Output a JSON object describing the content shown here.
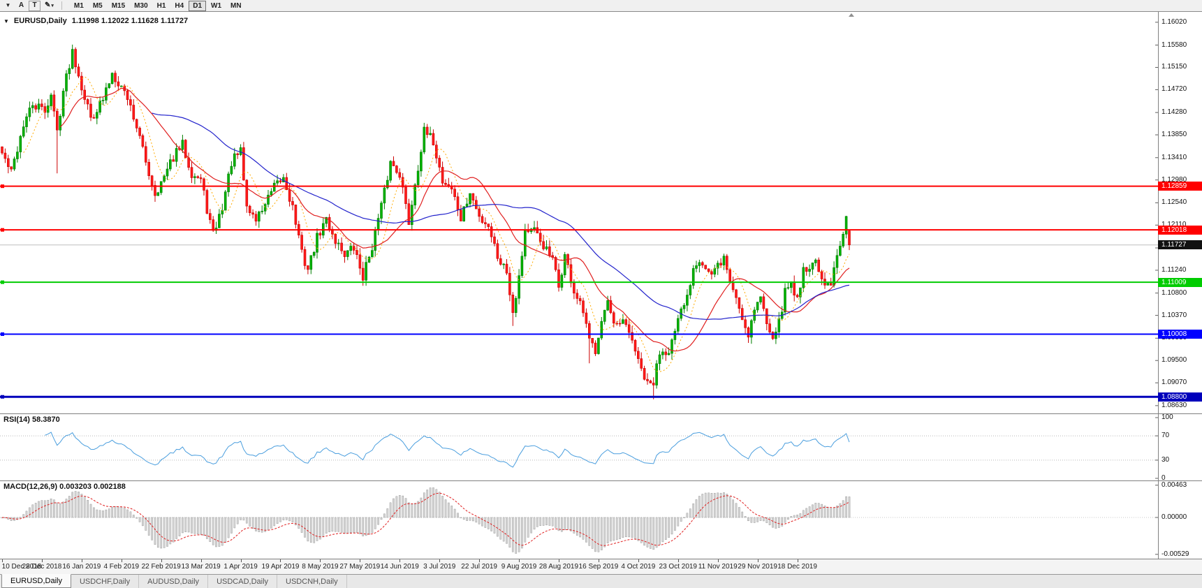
{
  "toolbar": {
    "menu_icon": "▼",
    "buttons": [
      {
        "label": "A"
      },
      {
        "label": "T"
      }
    ],
    "draw_icon": "✎",
    "draw_caret": "▾",
    "timeframes": [
      "M1",
      "M5",
      "M15",
      "M30",
      "H1",
      "H4",
      "D1",
      "W1",
      "MN"
    ],
    "active_timeframe": "D1"
  },
  "header": {
    "collapse_icon": "▼",
    "symbol": "EURUSD,Daily",
    "ohlc": "1.11998 1.12022 1.11628 1.11727",
    "open": "1.11998",
    "high": "1.12022",
    "low": "1.11628",
    "close": "1.11727"
  },
  "price_axis": {
    "ticks": [
      "1.16020",
      "1.15580",
      "1.15150",
      "1.14720",
      "1.14280",
      "1.13850",
      "1.13410",
      "1.12980",
      "1.12540",
      "1.12110",
      "1.11670",
      "1.11240",
      "1.10800",
      "1.10370",
      "1.09930",
      "1.09500",
      "1.09070",
      "1.08630"
    ]
  },
  "levels": [
    {
      "value": 1.12859,
      "label": "1.12859",
      "color": "#ff0000",
      "text_color": "#ffffff",
      "type": "resistance",
      "width": 2
    },
    {
      "value": 1.12018,
      "label": "1.12018",
      "color": "#ff0000",
      "text_color": "#ffffff",
      "type": "resistance",
      "width": 2
    },
    {
      "value": 1.11727,
      "label": "1.11727",
      "color": "#111111",
      "text_color": "#ffffff",
      "type": "current-price",
      "width": 1
    },
    {
      "value": 1.11009,
      "label": "1.11009",
      "color": "#00cc00",
      "text_color": "#ffffff",
      "type": "support",
      "width": 2
    },
    {
      "value": 1.10008,
      "label": "1.10008",
      "color": "#0000ff",
      "text_color": "#ffffff",
      "type": "support",
      "width": 2
    },
    {
      "value": 1.088,
      "label": "1.08800",
      "color": "#0000bb",
      "text_color": "#ffffff",
      "type": "support",
      "width": 3
    }
  ],
  "rsi": {
    "label": "RSI(14) 58.3870",
    "period": 14,
    "current": "58.3870",
    "ticks": [
      "100",
      "70",
      "30",
      "0"
    ],
    "level_lines": [
      70,
      30
    ],
    "color": "#4a9ede"
  },
  "macd": {
    "label": "MACD(12,26,9) 0.003203 0.002188",
    "params": "12,26,9",
    "main": "0.003203",
    "signal": "0.002188",
    "ticks": [
      "0.00463",
      "0.00000",
      "-0.00529"
    ]
  },
  "time_axis": {
    "labels": [
      "10 Dec 2018",
      "28 Dec 2018",
      "16 Jan 2019",
      "4 Feb 2019",
      "22 Feb 2019",
      "13 Mar 2019",
      "1 Apr 2019",
      "19 Apr 2019",
      "8 May 2019",
      "27 May 2019",
      "14 Jun 2019",
      "3 Jul 2019",
      "22 Jul 2019",
      "9 Aug 2019",
      "28 Aug 2019",
      "16 Sep 2019",
      "4 Oct 2019",
      "23 Oct 2019",
      "11 Nov 2019",
      "29 Nov 2019",
      "18 Dec 2019"
    ]
  },
  "tabs": [
    {
      "label": "EURUSD,Daily",
      "active": true
    },
    {
      "label": "USDCHF,Daily",
      "active": false
    },
    {
      "label": "AUDUSD,Daily",
      "active": false
    },
    {
      "label": "USDCAD,Daily",
      "active": false
    },
    {
      "label": "USDCNH,Daily",
      "active": false
    }
  ],
  "colors": {
    "up": "#007e00",
    "up_fill": "#00b200",
    "down": "#cc0000",
    "down_fill": "#ff1a1a",
    "ma_fast": "#ffaa00",
    "ma_mid": "#e02020",
    "ma_slow": "#2323cc",
    "rsi": "#4a9ede",
    "macd_hist_fill": "#d8d8d8",
    "macd_hist_stroke": "#9a9a9a",
    "macd_signal": "#e02020",
    "current_price_line": "#bdbdbd"
  },
  "chart_data": {
    "type": "candlestick",
    "symbol": "EURUSD",
    "timeframe": "Daily",
    "description": "EURUSD daily candles Dec 2018 - Jan 2020 with SMA(8) dotted, SMA(20) red, SMA(50) blue overlays, horizontal S/R levels at 1.12859, 1.12018, 1.11009, 1.10008, 1.08800, RSI(14)=58.3870 and MACD(12,26,9)=0.003203/0.002188 sub-panels",
    "price_domain": [
      1.0848,
      1.1622
    ],
    "candle_count": 278,
    "label_step": 13,
    "last_candle": {
      "open": 1.11998,
      "high": 1.12022,
      "low": 1.11628,
      "close": 1.11727
    },
    "moving_averages": [
      {
        "period": 8,
        "color": "#ffaa00",
        "style": "dashed"
      },
      {
        "period": 20,
        "color": "#e02020",
        "style": "solid"
      },
      {
        "period": 50,
        "color": "#2323cc",
        "style": "solid"
      }
    ],
    "wick_extensions": [
      [
        18,
        0.0072
      ],
      [
        167,
        0.0018
      ],
      [
        192,
        0.0046
      ],
      [
        213,
        0.0026
      ]
    ],
    "anchors": [
      [
        0,
        1.135
      ],
      [
        3,
        1.1312
      ],
      [
        7,
        1.1405
      ],
      [
        10,
        1.1442
      ],
      [
        14,
        1.1432
      ],
      [
        16,
        1.1462
      ],
      [
        18,
        1.1392
      ],
      [
        20,
        1.147
      ],
      [
        23,
        1.1548
      ],
      [
        26,
        1.148
      ],
      [
        29,
        1.1418
      ],
      [
        33,
        1.1452
      ],
      [
        36,
        1.1505
      ],
      [
        38,
        1.1488
      ],
      [
        41,
        1.1458
      ],
      [
        44,
        1.1402
      ],
      [
        47,
        1.1332
      ],
      [
        50,
        1.1272
      ],
      [
        53,
        1.1302
      ],
      [
        56,
        1.1342
      ],
      [
        59,
        1.1366
      ],
      [
        62,
        1.1312
      ],
      [
        65,
        1.1298
      ],
      [
        67,
        1.1242
      ],
      [
        69,
        1.1192
      ],
      [
        72,
        1.1246
      ],
      [
        75,
        1.1332
      ],
      [
        78,
        1.1352
      ],
      [
        80,
        1.1246
      ],
      [
        83,
        1.1222
      ],
      [
        86,
        1.1252
      ],
      [
        89,
        1.1282
      ],
      [
        92,
        1.1302
      ],
      [
        95,
        1.1246
      ],
      [
        98,
        1.1156
      ],
      [
        100,
        1.1126
      ],
      [
        103,
        1.1186
      ],
      [
        106,
        1.1222
      ],
      [
        109,
        1.1182
      ],
      [
        112,
        1.1156
      ],
      [
        115,
        1.1166
      ],
      [
        118,
        1.1112
      ],
      [
        121,
        1.1172
      ],
      [
        124,
        1.1246
      ],
      [
        127,
        1.1332
      ],
      [
        130,
        1.1312
      ],
      [
        133,
        1.1216
      ],
      [
        135,
        1.1292
      ],
      [
        138,
        1.139
      ],
      [
        141,
        1.1372
      ],
      [
        144,
        1.1296
      ],
      [
        147,
        1.1282
      ],
      [
        150,
        1.1222
      ],
      [
        153,
        1.1272
      ],
      [
        156,
        1.1226
      ],
      [
        159,
        1.1212
      ],
      [
        162,
        1.1152
      ],
      [
        165,
        1.1122
      ],
      [
        167,
        1.1046
      ],
      [
        169,
        1.1112
      ],
      [
        171,
        1.1202
      ],
      [
        174,
        1.1198
      ],
      [
        177,
        1.1172
      ],
      [
        180,
        1.1142
      ],
      [
        182,
        1.1092
      ],
      [
        184,
        1.1152
      ],
      [
        187,
        1.1082
      ],
      [
        190,
        1.1042
      ],
      [
        192,
        1.0986
      ],
      [
        194,
        1.0972
      ],
      [
        196,
        1.1032
      ],
      [
        198,
        1.1062
      ],
      [
        200,
        1.1012
      ],
      [
        203,
        1.1022
      ],
      [
        206,
        1.0992
      ],
      [
        208,
        1.0946
      ],
      [
        211,
        1.0902
      ],
      [
        213,
        1.0906
      ],
      [
        215,
        1.0968
      ],
      [
        218,
        1.0972
      ],
      [
        220,
        1.1002
      ],
      [
        222,
        1.1042
      ],
      [
        224,
        1.1072
      ],
      [
        226,
        1.1132
      ],
      [
        228,
        1.1148
      ],
      [
        230,
        1.1128
      ],
      [
        232,
        1.1112
      ],
      [
        234,
        1.1132
      ],
      [
        236,
        1.1148
      ],
      [
        238,
        1.1102
      ],
      [
        240,
        1.1072
      ],
      [
        242,
        1.1032
      ],
      [
        244,
        1.1002
      ],
      [
        246,
        1.1052
      ],
      [
        248,
        1.1072
      ],
      [
        250,
        1.1022
      ],
      [
        252,
        1.1002
      ],
      [
        254,
        1.1022
      ],
      [
        256,
        1.1082
      ],
      [
        258,
        1.1102
      ],
      [
        260,
        1.1066
      ],
      [
        262,
        1.1132
      ],
      [
        264,
        1.1122
      ],
      [
        266,
        1.1152
      ],
      [
        267,
        1.1112
      ],
      [
        269,
        1.1092
      ],
      [
        271,
        1.1094
      ],
      [
        273,
        1.1152
      ],
      [
        275,
        1.1202
      ],
      [
        276,
        1.1236
      ],
      [
        277,
        1.1173
      ]
    ]
  }
}
